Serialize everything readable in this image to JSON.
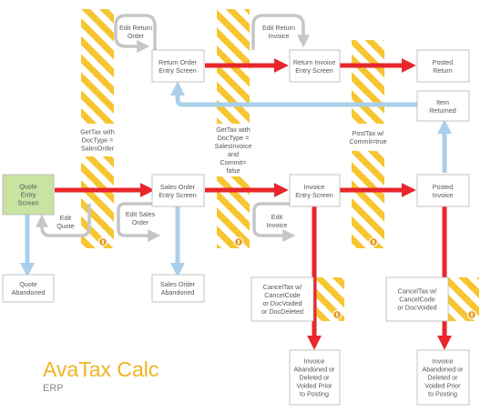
{
  "title": "AvaTax Calc",
  "subtitle": "ERP",
  "colors": {
    "stripe_yellow": "#f7c531",
    "flow_red": "#e8262b",
    "flow_blue": "#a9cfea",
    "loop_gray": "#c6c6c6",
    "start_green": "#c9e3a3",
    "box_border": "#b4b4b4",
    "badge_orange": "#e99a23"
  },
  "nodes": {
    "quote_entry": [
      "Quote",
      "Entry",
      "Screen"
    ],
    "quote_abandoned": [
      "Quote",
      "Abandoned"
    ],
    "sales_order_entry": [
      "Sales Order",
      "Entry Screen"
    ],
    "sales_order_abandoned": [
      "Sales Order",
      "Abandoned"
    ],
    "return_order_entry": [
      "Return Order",
      "Entry Screen"
    ],
    "return_invoice_entry": [
      "Return Invoice",
      "Entry Screen"
    ],
    "posted_return": [
      "Posted",
      "Return"
    ],
    "item_returned": [
      "Item",
      "Returned"
    ],
    "invoice_entry": [
      "Invoice",
      "Entry Screen"
    ],
    "posted_invoice": [
      "Posted",
      "Invoice"
    ],
    "invoice_abandoned_1": [
      "Invoice",
      "Abandoned or",
      "Deleted or",
      "Voided Prior",
      "to Posting"
    ],
    "invoice_abandoned_2": [
      "Invoice",
      "Abandoned or",
      "Deleted or",
      "Voided Prior",
      "to Posting"
    ]
  },
  "api_calls": {
    "gettax_salesorder": [
      "GetTax with",
      "DocType =",
      "SalesOrder"
    ],
    "gettax_salesinvoice": [
      "GetTax with",
      "DocType =",
      "SalesInvoice",
      "and",
      "Commit=",
      "false"
    ],
    "posttax": [
      "PostTax w/",
      "Commit=true"
    ],
    "canceltax_1": [
      "CancelTax w/",
      "CancelCode",
      "or DocVoided",
      "or DocDeleted"
    ],
    "canceltax_2": [
      "CancelTax w/",
      "CancelCode",
      "or DocVoided"
    ]
  },
  "edit_loops": {
    "edit_return_order": [
      "Edit Return",
      "Order"
    ],
    "edit_return_invoice": [
      "Edit Return",
      "Invoice"
    ],
    "edit_quote": [
      "Edit",
      "Quote"
    ],
    "edit_sales_order": [
      "Edit Sales",
      "Order"
    ],
    "edit_invoice": [
      "Edit",
      "Invoice"
    ]
  }
}
